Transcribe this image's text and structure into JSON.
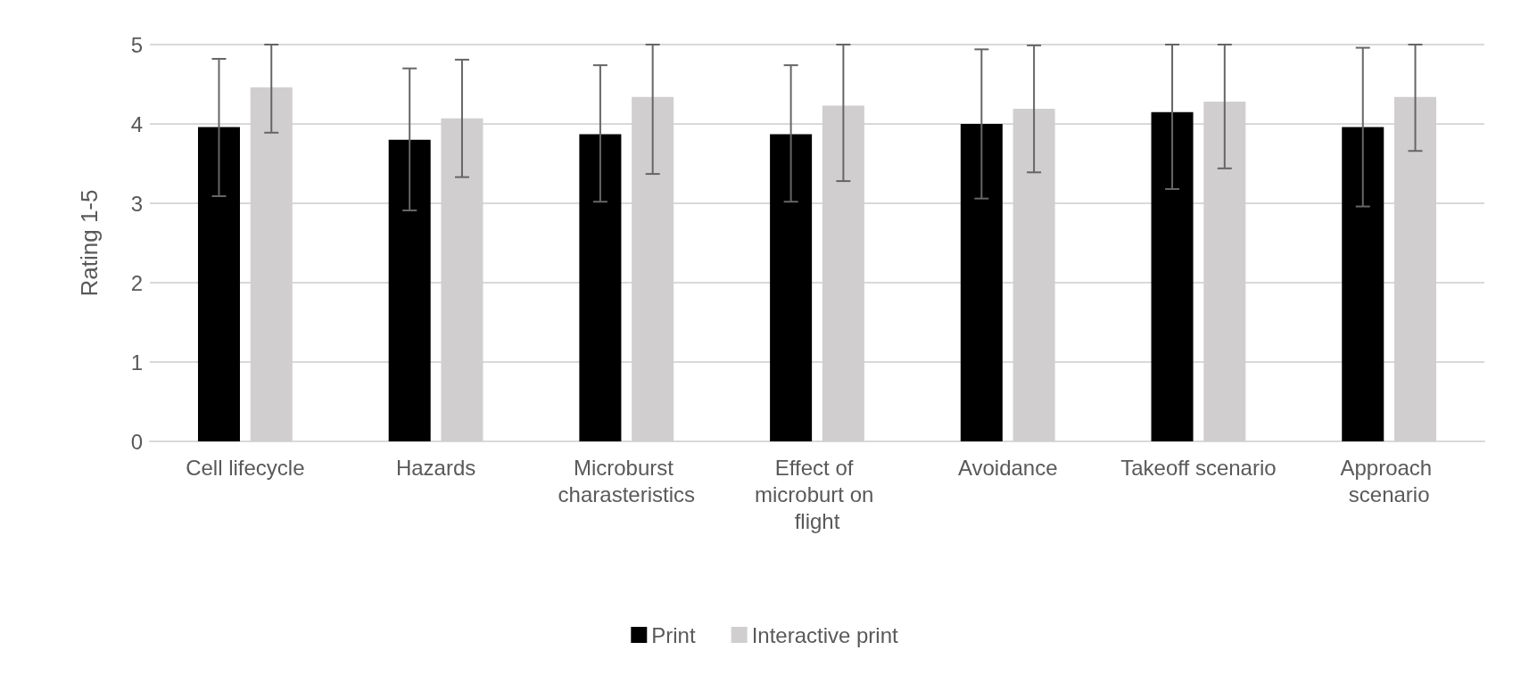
{
  "chart_data": {
    "type": "bar",
    "ylabel": "Rating 1-5",
    "categories": [
      "Cell lifecycle",
      "Hazards",
      "Microburst charasteristics",
      "Effect of microburt on flight",
      "Avoidance",
      "Takeoff scenario",
      "Approach scenario"
    ],
    "series": [
      {
        "name": "Print",
        "color": "#000000",
        "values": [
          3.96,
          3.8,
          3.87,
          3.87,
          4.0,
          4.15,
          3.96
        ],
        "errors": [
          [
            3.09,
            4.82
          ],
          [
            2.91,
            4.7
          ],
          [
            3.02,
            4.74
          ],
          [
            3.02,
            4.74
          ],
          [
            3.06,
            4.94
          ],
          [
            3.18,
            5.0
          ],
          [
            2.96,
            4.96
          ]
        ]
      },
      {
        "name": "Interactive print",
        "color": "#d0cecf",
        "values": [
          4.46,
          4.07,
          4.34,
          4.23,
          4.19,
          4.28,
          4.34
        ],
        "errors": [
          [
            3.89,
            5.0
          ],
          [
            3.33,
            4.81
          ],
          [
            3.37,
            5.0
          ],
          [
            3.28,
            5.0
          ],
          [
            3.39,
            4.99
          ],
          [
            3.44,
            5.0
          ],
          [
            3.66,
            5.0
          ]
        ]
      }
    ],
    "ylim": [
      0,
      5
    ],
    "yticks": [
      0,
      1,
      2,
      3,
      4,
      5
    ],
    "grid": "y",
    "legend": "bottom"
  }
}
